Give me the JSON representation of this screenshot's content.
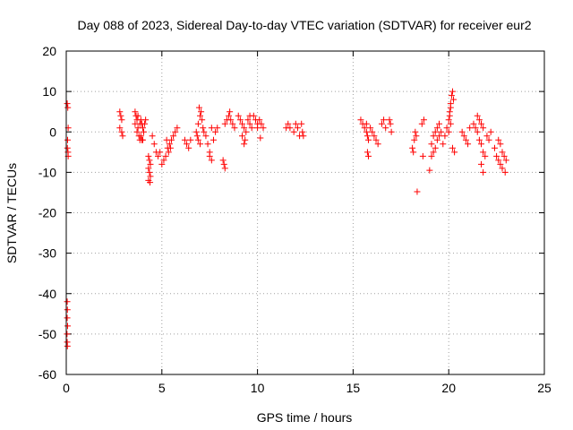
{
  "chart_data": {
    "type": "scatter",
    "title": "Day 088 of 2023, Sidereal Day-to-day VTEC variation (SDTVAR) for receiver eur2",
    "xlabel": "GPS time / hours",
    "ylabel": "SDTVAR / TECUs",
    "xlim": [
      0,
      25
    ],
    "ylim": [
      -60,
      20
    ],
    "xticks": [
      0,
      5,
      10,
      15,
      20,
      25
    ],
    "yticks": [
      -60,
      -50,
      -40,
      -30,
      -20,
      -10,
      0,
      10,
      20
    ],
    "xtick_labels": [
      "0",
      "5",
      "10",
      "15",
      "20",
      "25"
    ],
    "ytick_labels": [
      "-60",
      "-50",
      "-40",
      "-30",
      "-20",
      "-10",
      "0",
      "10",
      "20"
    ],
    "grid": true,
    "marker": "plus",
    "color": "#ff0000",
    "series": [
      {
        "name": "SDTVAR",
        "points": [
          [
            0.05,
            7
          ],
          [
            0.08,
            6
          ],
          [
            0.1,
            1
          ],
          [
            0.07,
            -2
          ],
          [
            0.06,
            -4
          ],
          [
            0.09,
            -5
          ],
          [
            0.1,
            -6
          ],
          [
            0.05,
            -42
          ],
          [
            0.06,
            -44
          ],
          [
            0.05,
            -46
          ],
          [
            0.07,
            -48
          ],
          [
            0.04,
            -50
          ],
          [
            0.05,
            -52
          ],
          [
            0.06,
            -53
          ],
          [
            2.8,
            5
          ],
          [
            2.85,
            4
          ],
          [
            2.9,
            3
          ],
          [
            2.8,
            1
          ],
          [
            2.9,
            0
          ],
          [
            2.95,
            -1
          ],
          [
            3.6,
            5
          ],
          [
            3.65,
            4
          ],
          [
            3.7,
            3
          ],
          [
            3.6,
            2
          ],
          [
            3.75,
            1
          ],
          [
            3.7,
            0
          ],
          [
            3.8,
            -1
          ],
          [
            3.85,
            -2
          ],
          [
            3.9,
            3
          ],
          [
            3.95,
            2
          ],
          [
            4.0,
            1
          ],
          [
            4.05,
            0
          ],
          [
            3.9,
            -1
          ],
          [
            4.0,
            -2
          ],
          [
            4.1,
            2
          ],
          [
            4.15,
            3
          ],
          [
            3.75,
            4
          ],
          [
            3.85,
            2
          ],
          [
            3.95,
            -2
          ],
          [
            4.3,
            -6
          ],
          [
            4.35,
            -7
          ],
          [
            4.4,
            -8
          ],
          [
            4.3,
            -9
          ],
          [
            4.35,
            -10
          ],
          [
            4.4,
            -11
          ],
          [
            4.3,
            -12
          ],
          [
            4.38,
            -12.5
          ],
          [
            4.5,
            -1
          ],
          [
            4.6,
            -3
          ],
          [
            4.7,
            -5
          ],
          [
            4.8,
            -6
          ],
          [
            4.9,
            -5
          ],
          [
            5.0,
            -8
          ],
          [
            5.1,
            -7
          ],
          [
            5.2,
            -6
          ],
          [
            5.3,
            -4
          ],
          [
            5.4,
            -3
          ],
          [
            5.5,
            -2
          ],
          [
            5.6,
            -1
          ],
          [
            5.7,
            0
          ],
          [
            5.8,
            1
          ],
          [
            5.25,
            -2
          ],
          [
            5.35,
            -5
          ],
          [
            5.45,
            -4
          ],
          [
            6.2,
            -2
          ],
          [
            6.3,
            -3
          ],
          [
            6.4,
            -4
          ],
          [
            6.5,
            -2
          ],
          [
            6.8,
            0
          ],
          [
            6.9,
            2
          ],
          [
            7.0,
            4
          ],
          [
            6.95,
            6
          ],
          [
            7.05,
            5
          ],
          [
            7.1,
            3
          ],
          [
            7.15,
            1
          ],
          [
            6.85,
            -1
          ],
          [
            6.9,
            -2
          ],
          [
            7.0,
            -3
          ],
          [
            7.2,
            0
          ],
          [
            7.3,
            -1
          ],
          [
            7.4,
            -3
          ],
          [
            7.5,
            -5
          ],
          [
            7.6,
            -7
          ],
          [
            7.5,
            -6
          ],
          [
            7.7,
            -2
          ],
          [
            7.8,
            0
          ],
          [
            7.9,
            1
          ],
          [
            7.6,
            1
          ],
          [
            8.2,
            -7
          ],
          [
            8.25,
            -8
          ],
          [
            8.3,
            -9
          ],
          [
            8.3,
            2
          ],
          [
            8.4,
            3
          ],
          [
            8.5,
            4
          ],
          [
            8.55,
            5
          ],
          [
            8.6,
            3
          ],
          [
            8.7,
            2
          ],
          [
            8.8,
            1
          ],
          [
            9.0,
            4
          ],
          [
            9.1,
            3
          ],
          [
            9.2,
            2
          ],
          [
            9.3,
            1
          ],
          [
            9.4,
            0
          ],
          [
            9.5,
            3
          ],
          [
            9.6,
            2
          ],
          [
            9.7,
            1
          ],
          [
            9.8,
            4
          ],
          [
            9.9,
            3
          ],
          [
            10.0,
            2
          ],
          [
            10.1,
            3
          ],
          [
            10.2,
            2
          ],
          [
            10.3,
            1
          ],
          [
            9.2,
            -1
          ],
          [
            9.35,
            -2
          ],
          [
            9.3,
            -3
          ],
          [
            9.6,
            4
          ],
          [
            10.0,
            1
          ],
          [
            10.15,
            -1.5
          ],
          [
            11.5,
            1
          ],
          [
            11.6,
            2
          ],
          [
            11.7,
            1
          ],
          [
            11.9,
            0
          ],
          [
            12.0,
            2
          ],
          [
            12.1,
            1
          ],
          [
            12.2,
            -1
          ],
          [
            12.3,
            2
          ],
          [
            12.35,
            0
          ],
          [
            12.4,
            -1
          ],
          [
            15.4,
            3
          ],
          [
            15.5,
            2
          ],
          [
            15.6,
            1
          ],
          [
            15.7,
            2
          ],
          [
            15.7,
            0
          ],
          [
            15.75,
            -1
          ],
          [
            15.8,
            -2
          ],
          [
            15.75,
            -5
          ],
          [
            15.8,
            -6
          ],
          [
            15.9,
            1
          ],
          [
            16.0,
            0
          ],
          [
            16.1,
            -1
          ],
          [
            16.2,
            -2
          ],
          [
            16.3,
            -3
          ],
          [
            16.5,
            2
          ],
          [
            16.6,
            3
          ],
          [
            16.7,
            1
          ],
          [
            16.9,
            3
          ],
          [
            16.95,
            2
          ],
          [
            17.0,
            0
          ],
          [
            18.1,
            -4
          ],
          [
            18.15,
            -5
          ],
          [
            18.2,
            -2
          ],
          [
            18.25,
            0
          ],
          [
            18.3,
            -1
          ],
          [
            18.35,
            -14.8
          ],
          [
            18.6,
            2
          ],
          [
            18.7,
            3
          ],
          [
            18.65,
            -6
          ],
          [
            19.0,
            -9.5
          ],
          [
            19.1,
            -3
          ],
          [
            19.2,
            -1
          ],
          [
            19.3,
            0
          ],
          [
            19.4,
            1
          ],
          [
            19.5,
            2
          ],
          [
            19.1,
            -6
          ],
          [
            19.2,
            -5
          ],
          [
            19.3,
            -4
          ],
          [
            19.4,
            -2
          ],
          [
            19.5,
            -1
          ],
          [
            19.6,
            0
          ],
          [
            19.7,
            -3
          ],
          [
            19.8,
            -1
          ],
          [
            19.9,
            1
          ],
          [
            20.0,
            3
          ],
          [
            20.05,
            5
          ],
          [
            20.1,
            7
          ],
          [
            20.15,
            9
          ],
          [
            20.2,
            10
          ],
          [
            20.25,
            8
          ],
          [
            20.1,
            6
          ],
          [
            20.05,
            4
          ],
          [
            20.1,
            2
          ],
          [
            20.0,
            0
          ],
          [
            20.2,
            -4
          ],
          [
            20.3,
            -5
          ],
          [
            20.7,
            0
          ],
          [
            20.8,
            -1
          ],
          [
            20.9,
            -2
          ],
          [
            21.0,
            -3
          ],
          [
            21.1,
            1
          ],
          [
            21.3,
            2
          ],
          [
            21.4,
            1
          ],
          [
            21.5,
            0
          ],
          [
            21.6,
            -2
          ],
          [
            21.7,
            -3
          ],
          [
            21.8,
            -5
          ],
          [
            21.5,
            4
          ],
          [
            21.6,
            3
          ],
          [
            21.7,
            2
          ],
          [
            21.8,
            1
          ],
          [
            21.7,
            -8
          ],
          [
            21.8,
            -10
          ],
          [
            21.9,
            -6
          ],
          [
            22.0,
            -1
          ],
          [
            22.1,
            -2
          ],
          [
            22.2,
            0
          ],
          [
            22.4,
            -4
          ],
          [
            22.5,
            -6
          ],
          [
            22.6,
            -7
          ],
          [
            22.7,
            -8
          ],
          [
            22.8,
            -9
          ],
          [
            22.6,
            -2
          ],
          [
            22.7,
            -3
          ],
          [
            22.8,
            -5
          ],
          [
            22.9,
            -6
          ],
          [
            23.0,
            -7
          ],
          [
            22.95,
            -10
          ]
        ]
      }
    ]
  }
}
